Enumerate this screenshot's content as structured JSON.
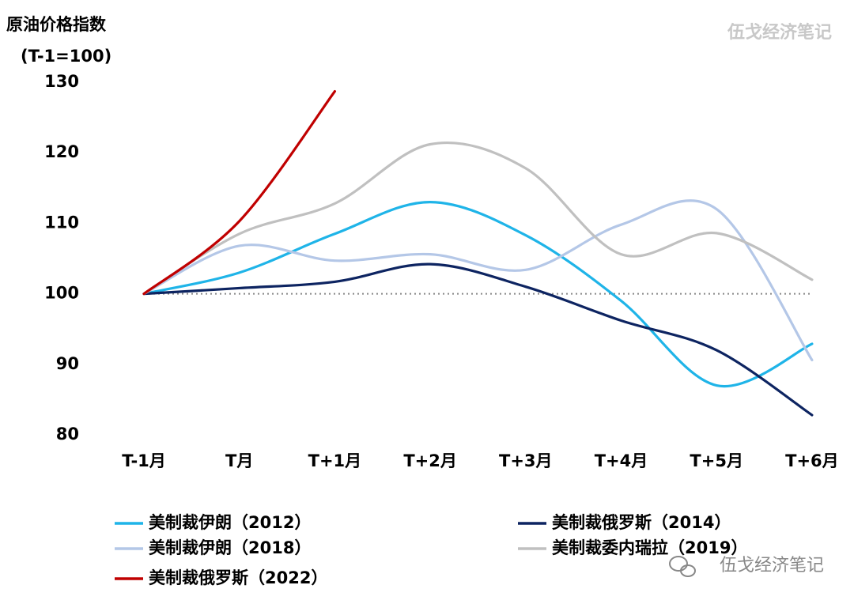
{
  "chart_data": {
    "type": "line",
    "y_label": [
      "原油价格指数",
      "(T-1=100)"
    ],
    "watermarks": [
      "伍戈经济笔记",
      "伍戈经济笔记"
    ],
    "categories": [
      "T-1月",
      "T月",
      "T+1月",
      "T+2月",
      "T+3月",
      "T+4月",
      "T+5月",
      "T+6月"
    ],
    "series": [
      {
        "name": "美制裁伊朗（2012）",
        "color": "#1fb4e8",
        "values": [
          100,
          103,
          108.5,
          113,
          108.3,
          99,
          87,
          92.9
        ]
      },
      {
        "name": "美制裁俄罗斯（2014）",
        "color": "#0d2461",
        "values": [
          100,
          100.8,
          101.7,
          104.2,
          101,
          96.2,
          92,
          82.8
        ]
      },
      {
        "name": "美制裁伊朗（2018）",
        "color": "#b4c7e7",
        "values": [
          100,
          106.8,
          104.7,
          105.6,
          103.4,
          109.8,
          112,
          90.6
        ]
      },
      {
        "name": "美制裁委内瑞拉（2019）",
        "color": "#c0c0c0",
        "values": [
          100,
          108.5,
          112.8,
          121.2,
          117.8,
          105.6,
          108.6,
          102
        ]
      },
      {
        "name": "美制裁俄罗斯（2022）",
        "color": "#c00000",
        "values": [
          100,
          110.3,
          128.7,
          null,
          null,
          null,
          null,
          null
        ]
      }
    ],
    "ylim": [
      80,
      130
    ],
    "yticks": [
      80,
      90,
      100,
      110,
      120,
      130
    ],
    "reference_line": 100
  }
}
